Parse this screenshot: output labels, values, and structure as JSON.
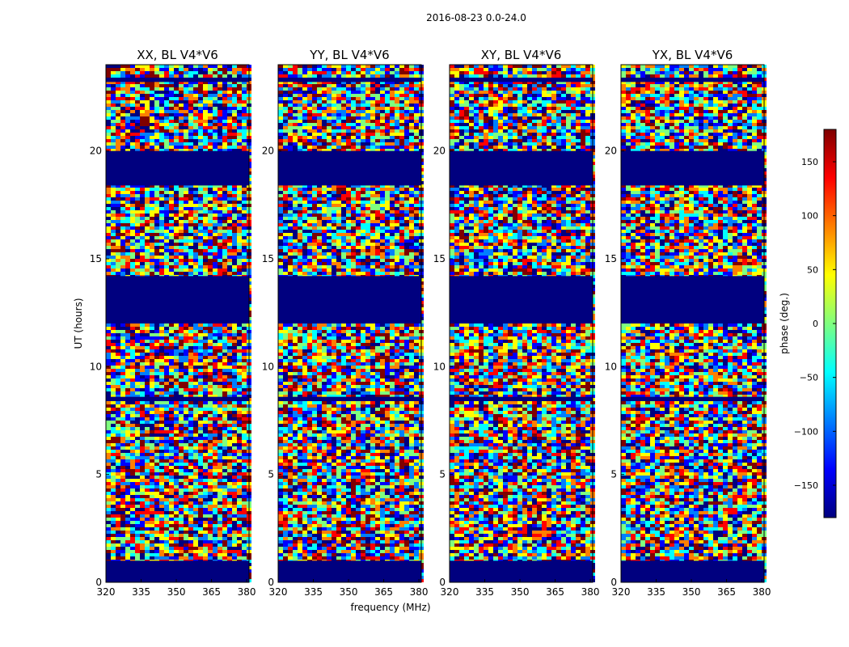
{
  "figure": {
    "suptitle": "2016-08-23 0.0-24.0",
    "ylabel": "UT (hours)",
    "xlabel": "frequency (MHz)"
  },
  "chart_data": {
    "type": "heatmap",
    "title": "2016-08-23 0.0-24.0",
    "x_axis": {
      "label": "frequency (MHz)",
      "range": [
        320,
        381
      ],
      "ticks": [
        320,
        335,
        350,
        365,
        380
      ]
    },
    "y_axis": {
      "label": "UT (hours)",
      "range": [
        0,
        24
      ],
      "ticks": [
        0,
        5,
        10,
        15,
        20
      ]
    },
    "panels": [
      {
        "title": "XX, BL V4*V6"
      },
      {
        "title": "YY, BL V4*V6"
      },
      {
        "title": "XY, BL V4*V6"
      },
      {
        "title": "YX, BL V4*V6"
      }
    ],
    "flagged_ut_bands": [
      [
        0,
        1.0
      ],
      [
        8.4,
        8.6
      ],
      [
        12.0,
        14.2
      ],
      [
        18.4,
        20.0
      ],
      [
        23.2,
        23.4
      ]
    ],
    "colorbar": {
      "label": "phase (deg.)",
      "range": [
        -180,
        180
      ],
      "ticks": [
        -150,
        -100,
        -50,
        0,
        50,
        100,
        150
      ],
      "tick_labels": [
        "−150",
        "−100",
        "−50",
        "0",
        "50",
        "100",
        "150"
      ],
      "colormap": "jet",
      "colors": [
        "#00007f",
        "#0000ff",
        "#007fff",
        "#00ffff",
        "#7fff7f",
        "#ffff00",
        "#ff7f00",
        "#ff0000",
        "#7f0000"
      ]
    }
  }
}
